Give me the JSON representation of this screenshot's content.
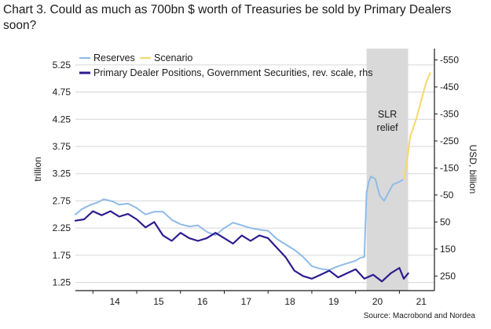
{
  "chart_data": {
    "type": "line",
    "title": "Chart 3. Could as much as 700bn $ worth of Treasuries be sold by Primary Dealers soon?",
    "source": "Source: Macrobond and Nordea",
    "y_left_label": "trillion",
    "y_right_label": "USD, billion",
    "y_left_ticks": [
      "1.25",
      "1.75",
      "2.25",
      "2.75",
      "3.25",
      "3.75",
      "4.25",
      "4.75",
      "5.25"
    ],
    "y_left_range": [
      1.1,
      5.55
    ],
    "y_right_ticks": [
      "-550",
      "-450",
      "-350",
      "-250",
      "-150",
      "-50",
      "50",
      "150",
      "250"
    ],
    "y_right_range": [
      -592,
      304
    ],
    "y_right_reversed": true,
    "x_ticks": [
      "14",
      "15",
      "16",
      "17",
      "18",
      "19",
      "20",
      "21"
    ],
    "x_range": [
      2013.6,
      2021.8
    ],
    "shaded_region": {
      "label": "SLR relief",
      "label_lines": [
        "SLR",
        "relief"
      ],
      "start": 2020.25,
      "end": 2021.2,
      "color": "#d9d9d9"
    },
    "legend": {
      "placement": "top-left"
    },
    "series": [
      {
        "name": "Reserves",
        "color": "#8fbbe8",
        "axis": "left",
        "x": [
          2013.6,
          2013.75,
          2013.95,
          2014.1,
          2014.25,
          2014.45,
          2014.6,
          2014.8,
          2015.0,
          2015.2,
          2015.4,
          2015.6,
          2015.8,
          2016.0,
          2016.2,
          2016.4,
          2016.6,
          2016.8,
          2017.0,
          2017.2,
          2017.4,
          2017.6,
          2017.8,
          2018.0,
          2018.2,
          2018.4,
          2018.6,
          2018.8,
          2019.0,
          2019.2,
          2019.4,
          2019.6,
          2019.8,
          2020.0,
          2020.1,
          2020.2,
          2020.25,
          2020.3,
          2020.35,
          2020.45,
          2020.55,
          2020.65,
          2020.75,
          2020.85,
          2021.0,
          2021.1
        ],
        "values": [
          2.5,
          2.6,
          2.68,
          2.72,
          2.78,
          2.74,
          2.68,
          2.7,
          2.62,
          2.5,
          2.55,
          2.55,
          2.4,
          2.32,
          2.28,
          2.3,
          2.18,
          2.12,
          2.25,
          2.35,
          2.3,
          2.25,
          2.22,
          2.2,
          2.05,
          1.95,
          1.85,
          1.72,
          1.55,
          1.5,
          1.48,
          1.55,
          1.6,
          1.65,
          1.7,
          1.72,
          2.9,
          3.1,
          3.2,
          3.15,
          2.85,
          2.75,
          2.9,
          3.05,
          3.1,
          3.15
        ]
      },
      {
        "name": "Scenario",
        "color": "#f5d86b",
        "axis": "left",
        "x": [
          2021.1,
          2021.15,
          2021.2,
          2021.25,
          2021.3,
          2021.4,
          2021.5,
          2021.6,
          2021.7
        ],
        "values": [
          3.15,
          3.35,
          3.65,
          3.95,
          4.05,
          4.3,
          4.6,
          4.9,
          5.1
        ]
      },
      {
        "name": "Primary Dealer Positions, Government Securities, rev. scale, rhs",
        "color": "#2d1b8f",
        "axis": "right",
        "x": [
          2013.6,
          2013.8,
          2014.0,
          2014.2,
          2014.4,
          2014.6,
          2014.8,
          2015.0,
          2015.2,
          2015.4,
          2015.6,
          2015.8,
          2016.0,
          2016.2,
          2016.4,
          2016.6,
          2016.8,
          2017.0,
          2017.2,
          2017.4,
          2017.6,
          2017.8,
          2018.0,
          2018.2,
          2018.4,
          2018.6,
          2018.8,
          2019.0,
          2019.2,
          2019.4,
          2019.6,
          2019.8,
          2020.0,
          2020.2,
          2020.4,
          2020.6,
          2020.8,
          2021.0,
          2021.1,
          2021.2
        ],
        "values": [
          45,
          40,
          10,
          25,
          10,
          30,
          20,
          40,
          70,
          50,
          100,
          120,
          90,
          110,
          120,
          110,
          90,
          110,
          130,
          100,
          120,
          100,
          110,
          145,
          180,
          230,
          250,
          260,
          245,
          230,
          255,
          240,
          225,
          260,
          245,
          270,
          240,
          220,
          260,
          240
        ]
      }
    ]
  }
}
